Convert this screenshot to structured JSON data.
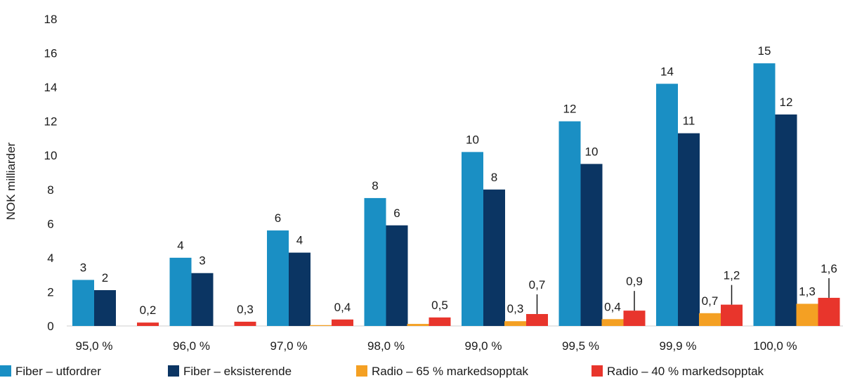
{
  "chart_data": {
    "type": "bar",
    "ylabel": "NOK milliarder",
    "xlabel": "",
    "ylim": [
      0,
      18
    ],
    "yticks": [
      "0",
      "2",
      "4",
      "6",
      "8",
      "10",
      "12",
      "14",
      "16",
      "18"
    ],
    "categories": [
      "95,0 %",
      "96,0 %",
      "97,0 %",
      "98,0 %",
      "99,0 %",
      "99,5 %",
      "99,9 %",
      "100,0 %"
    ],
    "legend_position": "bottom",
    "grid": false,
    "series": [
      {
        "name": "Fiber – utfordrer",
        "color": "#1a8fc4",
        "values": [
          2.7,
          4.0,
          5.6,
          7.5,
          10.2,
          12.0,
          14.2,
          15.4
        ],
        "labels": [
          "3",
          "4",
          "6",
          "8",
          "10",
          "12",
          "14",
          "15"
        ]
      },
      {
        "name": "Fiber – eksisterende",
        "color": "#0b3563",
        "values": [
          2.1,
          3.1,
          4.3,
          5.9,
          8.0,
          9.5,
          11.3,
          12.4
        ],
        "labels": [
          "2",
          "3",
          "4",
          "6",
          "8",
          "10",
          "11",
          "12"
        ]
      },
      {
        "name": "Radio – 65 % markedsopptak",
        "color": "#f4a023",
        "values": [
          0,
          0,
          0.05,
          0.12,
          0.28,
          0.4,
          0.75,
          1.3
        ],
        "labels": [
          "",
          "",
          "",
          "",
          "0,3",
          "0,4",
          "0,7",
          "1,3"
        ]
      },
      {
        "name": "Radio – 40 % markedsopptak",
        "color": "#e8352c",
        "values": [
          0.2,
          0.25,
          0.38,
          0.5,
          0.7,
          0.9,
          1.25,
          1.65
        ],
        "labels": [
          "0,2",
          "0,3",
          "0,4",
          "0,5",
          "0,7",
          "0,9",
          "1,2",
          "1,6"
        ]
      }
    ]
  }
}
